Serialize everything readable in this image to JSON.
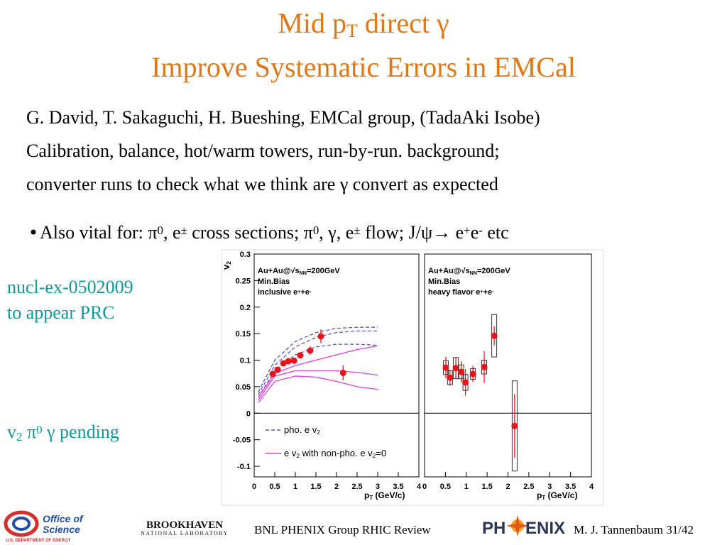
{
  "title": {
    "line1": [
      "Mid p",
      {
        "sub": "T"
      },
      " direct γ"
    ],
    "line2": "Improve Systematic Errors in EMCal"
  },
  "body": [
    "G. David, T. Sakaguchi, H. Bueshing, EMCal group, (TadaAki Isobe)",
    "Calibration, balance, hot/warm towers, run-by-run. background;",
    "converter runs to check what we think are γ convert as expected"
  ],
  "bullet": [
    "Also vital for: π",
    {
      "sup": "0"
    },
    ", e",
    {
      "sup": "±"
    },
    " cross sections; π",
    {
      "sup": "0"
    },
    ", γ, e",
    {
      "sup": "±"
    },
    " flow; J/ψ→ e",
    {
      "sup": "+"
    },
    "e",
    {
      "sup": "-"
    },
    "  etc"
  ],
  "side": {
    "ref": [
      "nucl-ex-0502009",
      "to appear PRC"
    ],
    "pending": [
      "v",
      {
        "sub": "2"
      },
      " π",
      {
        "sup": "0"
      },
      " γ pending"
    ]
  },
  "footer": {
    "center": "BNL PHENIX Group  RHIC Review",
    "right": "M. J. Tannenbaum   31/42",
    "logos": {
      "doe": [
        "Office of",
        "Science",
        "U.S. DEPARTMENT OF ENERGY"
      ],
      "bnl": [
        "BROOKHAVEN",
        "NATIONAL LABORATORY"
      ],
      "phenix": [
        "PH",
        "ENIX"
      ]
    }
  },
  "chart_data": [
    {
      "type": "scatter",
      "xlim": [
        0,
        4
      ],
      "ylim": [
        -0.12,
        0.3
      ],
      "xticks": [
        0,
        0.5,
        1,
        1.5,
        2,
        2.5,
        3,
        3.5,
        4
      ],
      "yticks": [
        -0.1,
        -0.05,
        0,
        0.05,
        0.1,
        0.15,
        0.2,
        0.25,
        0.3
      ],
      "ylabel": [
        "v",
        {
          "sub": "2"
        }
      ],
      "xlabel": [
        "p",
        {
          "sub": "T"
        },
        " (GeV/c)"
      ],
      "annotation": [
        [
          "Au+Au@√s",
          {
            "sub": "NN"
          },
          "=200GeV"
        ],
        [
          "Min.Bias"
        ],
        [
          "inclusive e",
          {
            "sup": "+"
          },
          "+e",
          {
            "sup": "-"
          }
        ]
      ],
      "zero_line": true,
      "curves": [
        {
          "name": [
            "pho. e v",
            {
              "sub": "2"
            }
          ],
          "color": "#5a5ab4",
          "dashed": true,
          "x": [
            0.1,
            0.5,
            1,
            1.5,
            2,
            2.5,
            3
          ],
          "lines": [
            [
              0.04,
              0.1,
              0.135,
              0.152,
              0.16,
              0.162,
              0.162
            ],
            [
              0.035,
              0.09,
              0.125,
              0.143,
              0.152,
              0.155,
              0.155
            ],
            [
              0.03,
              0.08,
              0.11,
              0.125,
              0.13,
              0.13,
              0.128
            ]
          ]
        },
        {
          "name": [
            "e v",
            {
              "sub": "2"
            },
            " with non-pho. e v",
            {
              "sub": "2"
            },
            "=0"
          ],
          "color": "#e040e0",
          "dashed": false,
          "x": [
            0.1,
            0.5,
            1,
            1.5,
            2,
            2.5,
            3
          ],
          "lines": [
            [
              0.03,
              0.075,
              0.09,
              0.1,
              0.11,
              0.12,
              0.127
            ],
            [
              0.025,
              0.07,
              0.08,
              0.08,
              0.08,
              0.077,
              0.072
            ],
            [
              0.02,
              0.06,
              0.07,
              0.068,
              0.06,
              0.05,
              0.045
            ]
          ]
        }
      ],
      "series": [
        {
          "color": "#e8141c",
          "x": [
            0.45,
            0.57,
            0.71,
            0.83,
            0.97,
            1.12,
            1.36,
            1.62,
            2.16
          ],
          "values": [
            0.074,
            0.082,
            0.094,
            0.098,
            0.099,
            0.109,
            0.118,
            0.145,
            0.076
          ],
          "errors": [
            0.004,
            0.004,
            0.004,
            0.004,
            0.004,
            0.005,
            0.008,
            0.013,
            0.014
          ]
        }
      ]
    },
    {
      "type": "scatter",
      "xlim": [
        0,
        4
      ],
      "ylim": [
        -0.12,
        0.3
      ],
      "xticks": [
        0,
        0.5,
        1,
        1.5,
        2,
        2.5,
        3,
        3.5,
        4
      ],
      "xlabel": [
        "p",
        {
          "sub": "T"
        },
        " (GeV/c)"
      ],
      "annotation": [
        [
          "Au+Au@√s",
          {
            "sub": "NN"
          },
          "=200GeV"
        ],
        [
          "Min.Bias"
        ],
        [
          "heavy flavor e",
          {
            "sup": "+"
          },
          "+e",
          {
            "sup": "-"
          }
        ]
      ],
      "zero_line": true,
      "series": [
        {
          "color": "#e8141c",
          "x": [
            0.51,
            0.61,
            0.75,
            0.88,
            0.98,
            1.16,
            1.43,
            1.67,
            2.16
          ],
          "values": [
            0.086,
            0.067,
            0.085,
            0.078,
            0.058,
            0.074,
            0.087,
            0.146,
            -0.024
          ],
          "errors": [
            0.02,
            0.015,
            0.02,
            0.02,
            0.025,
            0.015,
            0.03,
            0.018,
            0.06
          ],
          "sys": [
            0.013,
            0.013,
            0.02,
            0.013,
            0.015,
            0.01,
            0.013,
            0.04,
            0.085
          ]
        }
      ]
    }
  ]
}
